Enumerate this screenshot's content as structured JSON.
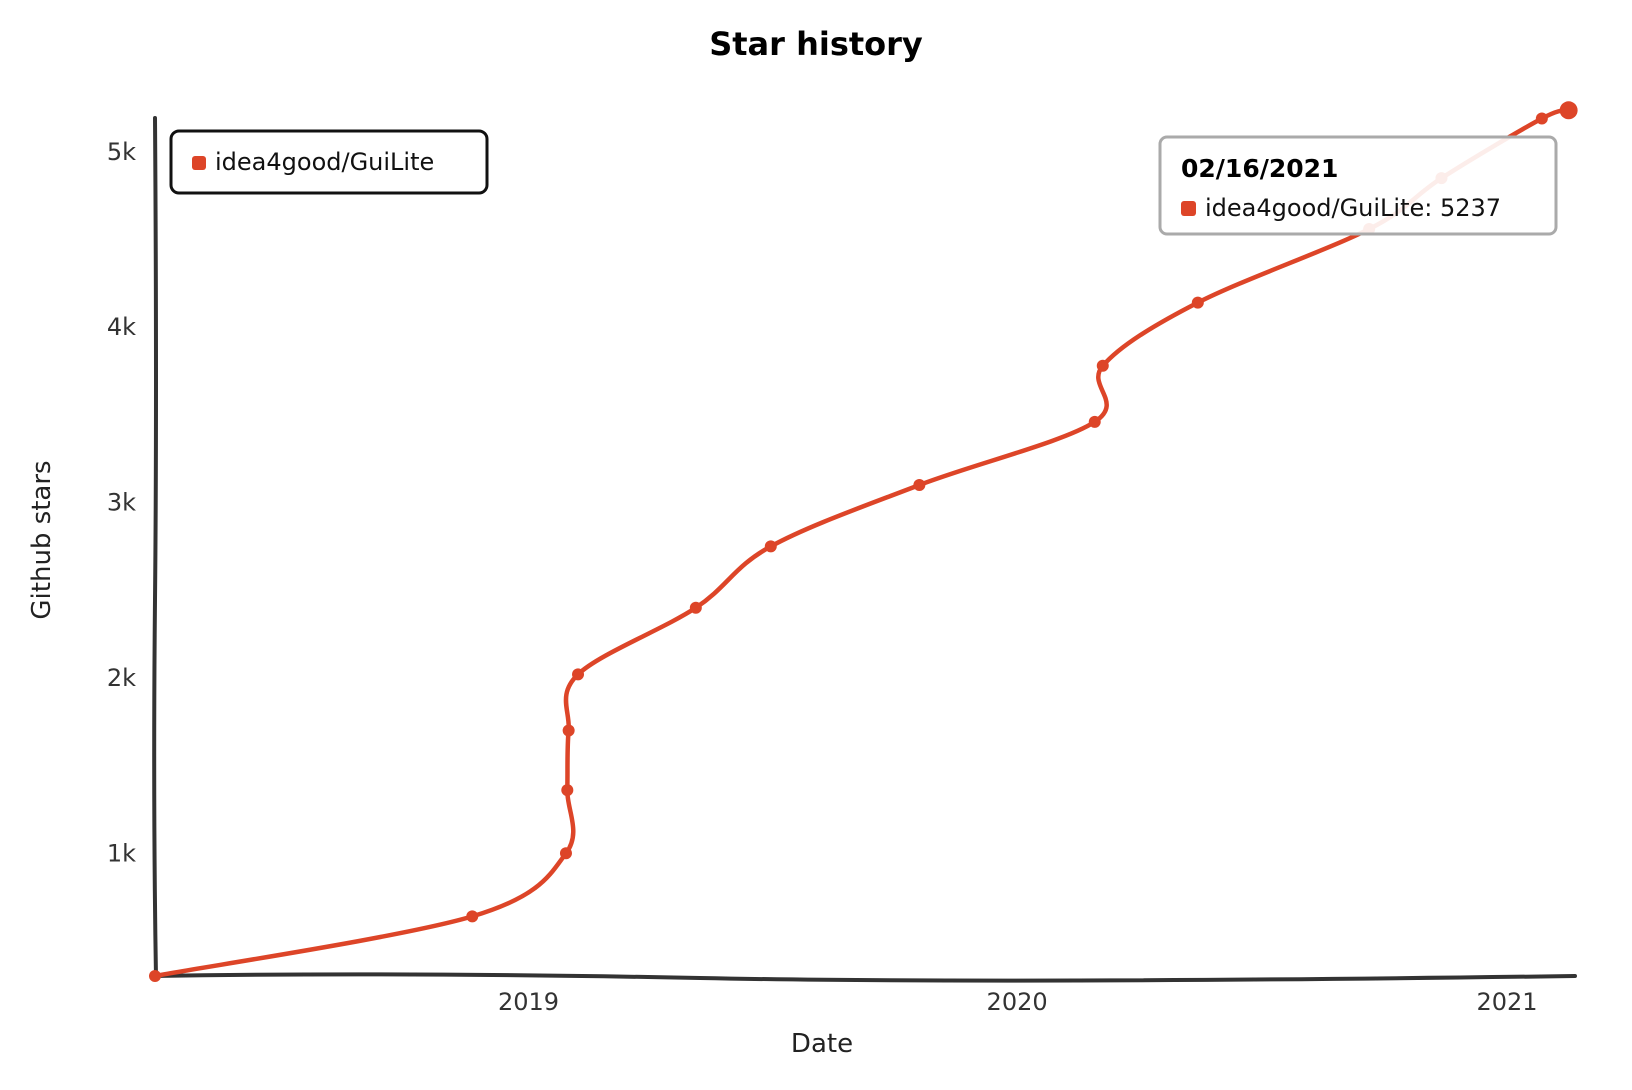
{
  "chart_data": {
    "type": "line",
    "title": "Star history",
    "xlabel": "Date",
    "ylabel": "Github stars",
    "x_ticks": [
      "2019",
      "2020",
      "2021"
    ],
    "y_ticks": [
      "1k",
      "2k",
      "3k",
      "4k",
      "5k"
    ],
    "y_tick_values": [
      1000,
      2000,
      3000,
      4000,
      5000
    ],
    "ylim": [
      300,
      5250
    ],
    "xlim": [
      "2018-03-28",
      "2021-02-23"
    ],
    "legend_position": "top-left",
    "series": [
      {
        "name": "idea4good/GuiLite",
        "color": "#dd4528",
        "points": [
          {
            "x": "2018-03-28",
            "y": 300
          },
          {
            "x": "2018-11-20",
            "y": 640
          },
          {
            "x": "2019-01-29",
            "y": 1000
          },
          {
            "x": "2019-01-30",
            "y": 1360
          },
          {
            "x": "2019-01-31",
            "y": 1700
          },
          {
            "x": "2019-02-07",
            "y": 2020
          },
          {
            "x": "2019-05-06",
            "y": 2400
          },
          {
            "x": "2019-07-01",
            "y": 2750
          },
          {
            "x": "2019-10-20",
            "y": 3100
          },
          {
            "x": "2020-02-28",
            "y": 3460
          },
          {
            "x": "2020-03-05",
            "y": 3780
          },
          {
            "x": "2020-05-15",
            "y": 4140
          },
          {
            "x": "2020-09-20",
            "y": 4560
          },
          {
            "x": "2020-11-13",
            "y": 4850
          },
          {
            "x": "2021-01-27",
            "y": 5190
          },
          {
            "x": "2021-02-16",
            "y": 5237
          }
        ]
      }
    ],
    "tooltip": {
      "date": "02/16/2021",
      "series": "idea4good/GuiLite",
      "value": "5237",
      "color": "#dd4528"
    }
  }
}
